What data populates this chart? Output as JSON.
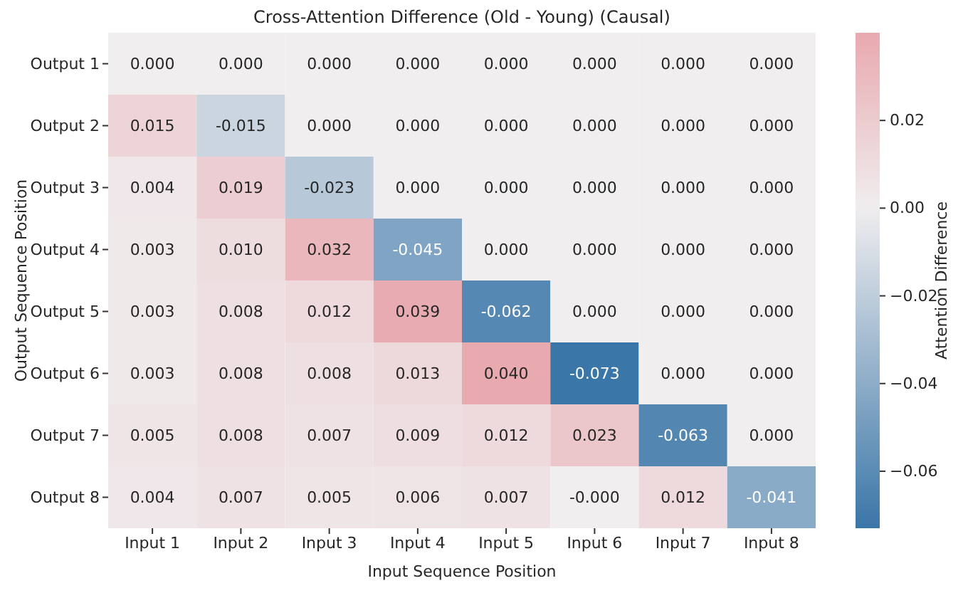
{
  "chart_data": {
    "type": "heatmap",
    "title": "Cross-Attention Difference (Old - Young) (Causal)",
    "xlabel": "Input Sequence Position",
    "ylabel": "Output Sequence Position",
    "clabel": "Attention Difference",
    "categories": [
      "Input 1",
      "Input 2",
      "Input 3",
      "Input 4",
      "Input 5",
      "Input 6",
      "Input 7",
      "Input 8"
    ],
    "y_categories": [
      "Output 1",
      "Output 2",
      "Output 3",
      "Output 4",
      "Output 5",
      "Output 6",
      "Output 7",
      "Output 8"
    ],
    "cells": [
      [
        0,
        0,
        0,
        0,
        0,
        0,
        0,
        0
      ],
      [
        0.015,
        -0.015,
        0,
        0,
        0,
        0,
        0,
        0
      ],
      [
        0.004,
        0.019,
        -0.023,
        0,
        0,
        0,
        0,
        0
      ],
      [
        0.003,
        0.01,
        0.032,
        -0.045,
        0,
        0,
        0,
        0
      ],
      [
        0.003,
        0.008,
        0.012,
        0.039,
        -0.062,
        0,
        0,
        0
      ],
      [
        0.003,
        0.008,
        0.008,
        0.013,
        0.04,
        -0.073,
        0,
        0
      ],
      [
        0.005,
        0.008,
        0.007,
        0.009,
        0.012,
        0.023,
        -0.063,
        0
      ],
      [
        0.004,
        0.007,
        0.005,
        0.006,
        0.007,
        0,
        0.012,
        -0.041
      ]
    ],
    "cell_labels": [
      [
        "0.000",
        "0.000",
        "0.000",
        "0.000",
        "0.000",
        "0.000",
        "0.000",
        "0.000"
      ],
      [
        "0.015",
        "-0.015",
        "0.000",
        "0.000",
        "0.000",
        "0.000",
        "0.000",
        "0.000"
      ],
      [
        "0.004",
        "0.019",
        "-0.023",
        "0.000",
        "0.000",
        "0.000",
        "0.000",
        "0.000"
      ],
      [
        "0.003",
        "0.010",
        "0.032",
        "-0.045",
        "0.000",
        "0.000",
        "0.000",
        "0.000"
      ],
      [
        "0.003",
        "0.008",
        "0.012",
        "0.039",
        "-0.062",
        "0.000",
        "0.000",
        "0.000"
      ],
      [
        "0.003",
        "0.008",
        "0.008",
        "0.013",
        "0.040",
        "-0.073",
        "0.000",
        "0.000"
      ],
      [
        "0.005",
        "0.008",
        "0.007",
        "0.009",
        "0.012",
        "0.023",
        "-0.063",
        "0.000"
      ],
      [
        "0.004",
        "0.007",
        "0.005",
        "0.006",
        "0.007",
        "-0.000",
        "0.012",
        "-0.041"
      ]
    ],
    "clim": [
      -0.073,
      0.04
    ],
    "cticks": [
      {
        "value": 0.02,
        "label": "0.02"
      },
      {
        "value": 0,
        "label": "0.00"
      },
      {
        "value": -0.02,
        "label": "−0.02"
      },
      {
        "value": -0.04,
        "label": "−0.04"
      },
      {
        "value": -0.06,
        "label": "−0.06"
      }
    ]
  }
}
